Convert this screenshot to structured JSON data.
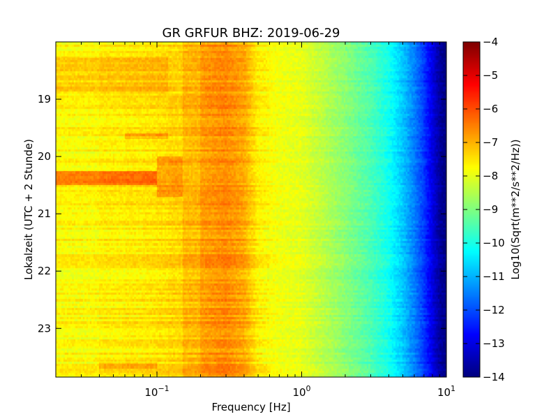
{
  "chart_data": {
    "type": "heatmap",
    "title": "GR GRFUR BHZ: 2019-06-29",
    "xlabel": "Frequency [Hz]",
    "ylabel": "Lokalzeit (UTC + 2 Stunde)",
    "x_scale": "log",
    "xlim": [
      0.02,
      10
    ],
    "ylim": [
      18.0,
      23.85
    ],
    "y_inverted": true,
    "x_ticks": [
      {
        "value": 0.1,
        "base": "10",
        "exp": "−1"
      },
      {
        "value": 1,
        "base": "10",
        "exp": "0"
      },
      {
        "value": 10,
        "base": "10",
        "exp": "1"
      }
    ],
    "y_ticks": [
      {
        "value": 19,
        "label": "19"
      },
      {
        "value": 20,
        "label": "20"
      },
      {
        "value": 21,
        "label": "21"
      },
      {
        "value": 22,
        "label": "22"
      },
      {
        "value": 23,
        "label": "23"
      }
    ],
    "colorbar": {
      "label": "Log10(Sqrt(m**2/s**2/Hz))",
      "range": [
        -14,
        -4
      ],
      "colormap": "jet",
      "ticks": [
        "−4",
        "−5",
        "−6",
        "−7",
        "−8",
        "−9",
        "−10",
        "−11",
        "−12",
        "−13",
        "−14"
      ]
    },
    "spectrum_profile": {
      "freq_hz": [
        0.02,
        0.05,
        0.1,
        0.15,
        0.2,
        0.3,
        0.4,
        0.5,
        0.7,
        1.0,
        1.5,
        2.0,
        3.0,
        4.0,
        5.0,
        6.0,
        7.0,
        8.0,
        9.0,
        10.0
      ],
      "level": [
        -7.8,
        -7.6,
        -7.5,
        -7.3,
        -6.8,
        -6.6,
        -6.9,
        -7.6,
        -7.9,
        -8.0,
        -8.5,
        -8.9,
        -9.5,
        -10.1,
        -10.8,
        -11.5,
        -12.2,
        -13.0,
        -13.7,
        -14.0
      ]
    },
    "events": [
      {
        "time_start": 18.25,
        "time_end": 18.9,
        "freq_start": 0.02,
        "freq_end": 0.12,
        "delta": 0.4
      },
      {
        "time_start": 20.25,
        "time_end": 20.5,
        "freq_start": 0.02,
        "freq_end": 0.1,
        "delta": 1.3
      },
      {
        "time_start": 20.0,
        "time_end": 20.7,
        "freq_start": 0.1,
        "freq_end": 0.16,
        "delta": 0.6
      },
      {
        "time_start": 19.6,
        "time_end": 19.7,
        "freq_start": 0.06,
        "freq_end": 0.12,
        "delta": 0.6
      },
      {
        "time_start": 23.6,
        "time_end": 23.7,
        "freq_start": 0.04,
        "freq_end": 0.1,
        "delta": 0.5
      }
    ]
  }
}
